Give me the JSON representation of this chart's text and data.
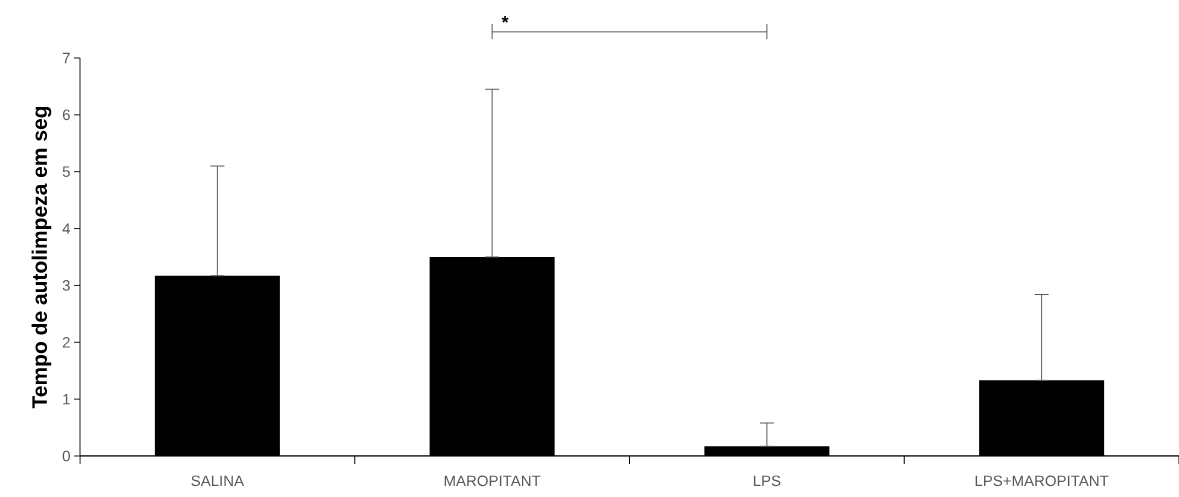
{
  "chart_data": {
    "type": "bar",
    "ylabel": "Tempo de autolimpeza em seg",
    "categories": [
      "SALINA",
      "MAROPITANT",
      "LPS",
      "LPS+MAROPITANT"
    ],
    "values": [
      3.17,
      3.5,
      0.17,
      1.33
    ],
    "errors": [
      [
        3.17,
        5.1
      ],
      [
        3.5,
        6.45
      ],
      [
        0.17,
        0.58
      ],
      [
        1.33,
        2.84
      ]
    ],
    "color": "#000000",
    "ylim": [
      0,
      7
    ],
    "yticks": [
      0,
      1,
      2,
      3,
      4,
      5,
      6,
      7
    ],
    "grid": false,
    "annotations": [
      "*"
    ]
  }
}
